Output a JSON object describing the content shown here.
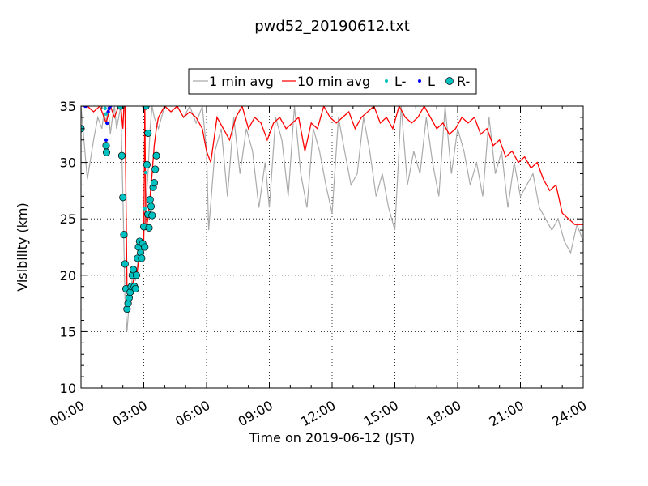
{
  "chart_data": {
    "type": "line",
    "title": "pwd52_20190612.txt",
    "xlabel": "Time on 2019-06-12 (JST)",
    "ylabel": "Visibility (km)",
    "x_unit": "hours",
    "xlim": [
      0,
      24
    ],
    "ylim": [
      10,
      35
    ],
    "x_ticks": [
      0,
      3,
      6,
      9,
      12,
      15,
      18,
      21,
      24
    ],
    "x_tick_labels": [
      "00:00",
      "03:00",
      "06:00",
      "09:00",
      "12:00",
      "15:00",
      "18:00",
      "21:00",
      "24:00"
    ],
    "y_ticks": [
      10,
      15,
      20,
      25,
      30,
      35
    ],
    "y_tick_labels": [
      "10",
      "15",
      "20",
      "25",
      "30",
      "35"
    ],
    "grid": true,
    "legend": {
      "placement": "above plot, centered",
      "entries": [
        "1 min avg",
        "10 min avg",
        "L-",
        "L",
        "R-"
      ]
    },
    "series": [
      {
        "name": "1 min avg",
        "color": "#aaaaaa",
        "kind": "line",
        "x": [
          0.0,
          0.3,
          0.6,
          0.8,
          1.0,
          1.1,
          1.2,
          1.3,
          1.4,
          1.5,
          1.6,
          1.7,
          1.8,
          1.9,
          2.0,
          2.1,
          2.2,
          2.3,
          2.4,
          2.5,
          2.6,
          2.7,
          2.8,
          2.9,
          3.0,
          3.1,
          3.2,
          3.3,
          3.4,
          3.5,
          3.7,
          4.0,
          4.3,
          4.6,
          4.9,
          5.2,
          5.5,
          5.8,
          6.0,
          6.1,
          6.4,
          6.7,
          7.0,
          7.3,
          7.6,
          7.9,
          8.2,
          8.5,
          8.8,
          9.0,
          9.3,
          9.6,
          9.9,
          10.2,
          10.5,
          10.8,
          11.1,
          11.4,
          11.7,
          12.0,
          12.3,
          12.6,
          12.9,
          13.2,
          13.5,
          13.8,
          14.1,
          14.4,
          14.7,
          15.0,
          15.3,
          15.6,
          15.9,
          16.2,
          16.5,
          16.8,
          17.1,
          17.4,
          17.7,
          18.0,
          18.3,
          18.6,
          18.9,
          19.2,
          19.5,
          19.8,
          20.1,
          20.4,
          20.7,
          21.0,
          21.3,
          21.6,
          21.9,
          22.2,
          22.5,
          22.8,
          23.1,
          23.4,
          23.7,
          24.0
        ],
        "y": [
          35,
          28.5,
          32,
          34,
          33,
          34.5,
          33.5,
          35,
          32.5,
          34,
          35,
          33,
          34,
          35,
          27,
          18,
          15,
          17.5,
          19,
          20.5,
          19.5,
          21,
          22.5,
          22,
          23.5,
          26,
          29,
          33,
          35,
          34,
          33,
          35,
          34.5,
          35,
          34,
          35,
          33.5,
          35,
          31,
          24,
          31,
          33,
          27,
          34,
          29,
          33,
          31,
          26,
          30,
          26,
          34,
          32,
          27,
          35,
          29,
          26,
          33,
          31,
          28,
          25.5,
          34,
          31,
          28,
          29,
          34,
          31,
          27,
          29,
          26,
          24,
          35,
          28,
          31,
          29,
          34,
          30,
          27,
          35,
          29,
          33,
          31,
          28,
          30,
          27,
          34,
          29,
          31,
          26,
          30,
          27,
          28,
          29,
          26,
          25,
          24,
          25,
          23,
          22,
          24.5,
          23
        ]
      },
      {
        "name": "10 min avg",
        "color": "#ff0000",
        "kind": "line",
        "x": [
          0.0,
          0.3,
          0.6,
          0.9,
          1.2,
          1.4,
          1.6,
          1.8,
          1.9,
          2.0,
          2.05,
          2.1,
          2.15,
          2.2,
          2.3,
          2.4,
          2.5,
          2.6,
          2.7,
          2.8,
          2.9,
          3.0,
          3.05,
          3.1,
          3.2,
          3.3,
          3.4,
          3.5,
          3.6,
          3.7,
          4.0,
          4.3,
          4.6,
          4.9,
          5.2,
          5.5,
          5.8,
          6.0,
          6.2,
          6.5,
          6.8,
          7.1,
          7.4,
          7.7,
          8.0,
          8.3,
          8.6,
          8.9,
          9.2,
          9.5,
          9.8,
          10.1,
          10.4,
          10.7,
          11.0,
          11.3,
          11.6,
          11.9,
          12.2,
          12.5,
          12.8,
          13.1,
          13.4,
          13.7,
          14.0,
          14.3,
          14.6,
          14.9,
          15.2,
          15.5,
          15.8,
          16.1,
          16.4,
          16.7,
          17.0,
          17.3,
          17.6,
          17.9,
          18.2,
          18.5,
          18.8,
          19.1,
          19.4,
          19.7,
          20.0,
          20.3,
          20.6,
          20.9,
          21.2,
          21.5,
          21.8,
          22.1,
          22.4,
          22.7,
          23.0,
          23.3,
          23.6,
          24.0
        ],
        "y": [
          35,
          35,
          34.5,
          35,
          33.5,
          35,
          34,
          35,
          35,
          33,
          35,
          35,
          27,
          19,
          18,
          18.5,
          19.5,
          20,
          20.5,
          22,
          22.5,
          23,
          35,
          24,
          25,
          27,
          29,
          31.5,
          33,
          34,
          35,
          34.5,
          35,
          34,
          34.5,
          34,
          33,
          31,
          30,
          34,
          33,
          32,
          34,
          35,
          33,
          34,
          33.5,
          32,
          33.5,
          34,
          33,
          33.5,
          34,
          31,
          33.5,
          33,
          35,
          34,
          33.5,
          34,
          34.5,
          33,
          34,
          34.5,
          35,
          33.5,
          34,
          33,
          35,
          34,
          33.5,
          34,
          35,
          34,
          33,
          33.5,
          32.5,
          33,
          34,
          33.5,
          34,
          32.5,
          33,
          31.5,
          32,
          30.5,
          31,
          30,
          30.5,
          29.5,
          30,
          28.5,
          27.5,
          28,
          25.5,
          25,
          24.5,
          24.5
        ]
      },
      {
        "name": "L-",
        "color": "#00c0c0",
        "kind": "markers",
        "x": [
          1.15,
          1.2,
          1.25,
          3.05,
          3.1
        ],
        "y": [
          34.8,
          34.3,
          33.5,
          25.9,
          29.1
        ]
      },
      {
        "name": "L",
        "color": "#0000ff",
        "kind": "markers",
        "x": [
          0.2,
          0.25,
          1.2,
          1.25,
          1.3,
          1.35,
          1.4
        ],
        "y": [
          35,
          35,
          32,
          33.5,
          34.5,
          34.8,
          35
        ]
      },
      {
        "name": "R-",
        "color": "#00c0c0",
        "kind": "markers",
        "x": [
          0.0,
          1.2,
          1.22,
          1.9,
          1.95,
          2.0,
          2.05,
          2.1,
          2.15,
          2.2,
          2.25,
          2.3,
          2.35,
          2.4,
          2.45,
          2.5,
          2.55,
          2.6,
          2.65,
          2.7,
          2.75,
          2.8,
          2.85,
          2.9,
          2.95,
          3.0,
          3.05,
          3.1,
          3.15,
          3.2,
          3.25,
          3.3,
          3.35,
          3.4,
          3.45,
          3.5,
          3.55,
          3.6,
          3.2
        ],
        "y": [
          33,
          31.5,
          30.9,
          35,
          30.6,
          26.9,
          23.6,
          21,
          18.8,
          17,
          17.5,
          18,
          18.5,
          19,
          20,
          20.5,
          19,
          18.8,
          20,
          21.5,
          22.5,
          23,
          22,
          21.5,
          22.8,
          24.3,
          22.5,
          35,
          29.8,
          25.4,
          24.2,
          26.7,
          26.1,
          25.3,
          27.8,
          28.2,
          29.4,
          30.6,
          32.6
        ]
      }
    ]
  }
}
